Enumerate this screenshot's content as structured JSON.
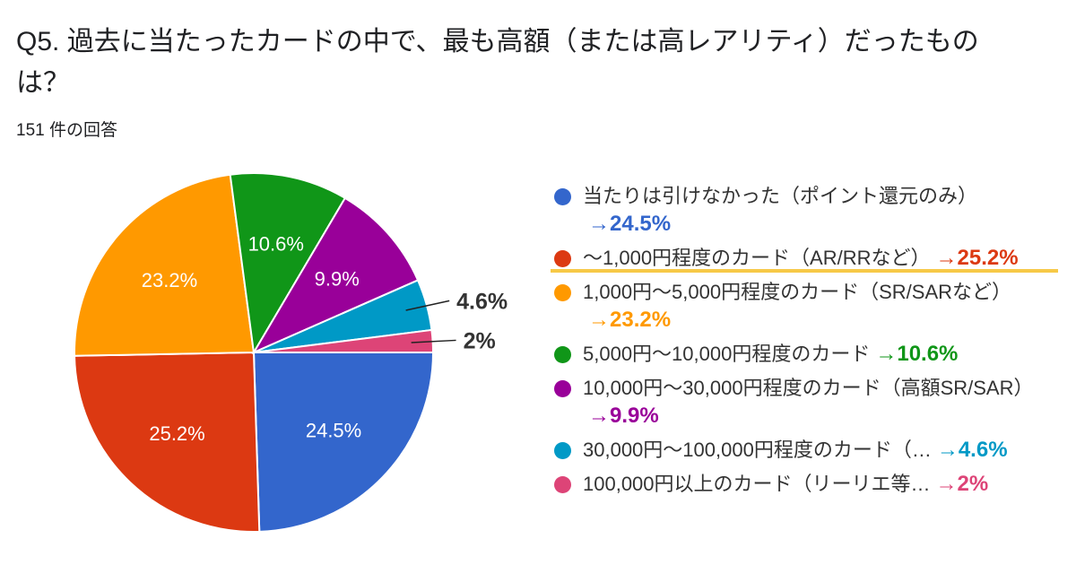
{
  "title": "Q5. 過去に当たったカードの中で、最も高額（または高レアリティ）だったものは？",
  "response_count": "151 件の回答",
  "chart_data": {
    "type": "pie",
    "start_angle": "3 o'clock, clockwise",
    "legend_position": "right",
    "slices": [
      {
        "label": "当たりは引けなかった（ポイント還元のみ）",
        "value": 24.5,
        "data_label": "24.5%",
        "annotation": "→24.5%",
        "color": "#3366cc"
      },
      {
        "label": "〜1,000円程度のカード（AR/RRなど）",
        "value": 25.2,
        "data_label": "25.2%",
        "annotation": "→25.2%",
        "color": "#dc3912",
        "highlighted": true
      },
      {
        "label": "1,000円〜5,000円程度のカード（SR/SARなど）",
        "value": 23.2,
        "data_label": "23.2%",
        "annotation": "→23.2%",
        "color": "#ff9900"
      },
      {
        "label": "5,000円〜10,000円程度のカード",
        "value": 10.6,
        "data_label": "10.6%",
        "annotation": "→10.6%",
        "color": "#109618"
      },
      {
        "label": "10,000円〜30,000円程度のカード（高額SR/SAR）",
        "value": 9.9,
        "data_label": "9.9%",
        "annotation": "→9.9%",
        "color": "#990099"
      },
      {
        "label": "30,000円〜100,000円程度のカード（…",
        "value": 4.6,
        "data_label": "4.6%",
        "annotation": "→4.6%",
        "color": "#0099c6"
      },
      {
        "label": "100,000円以上のカード（リーリエ等…",
        "value": 2,
        "data_label": "2%",
        "annotation": "→2%",
        "color": "#dd4477"
      }
    ]
  }
}
